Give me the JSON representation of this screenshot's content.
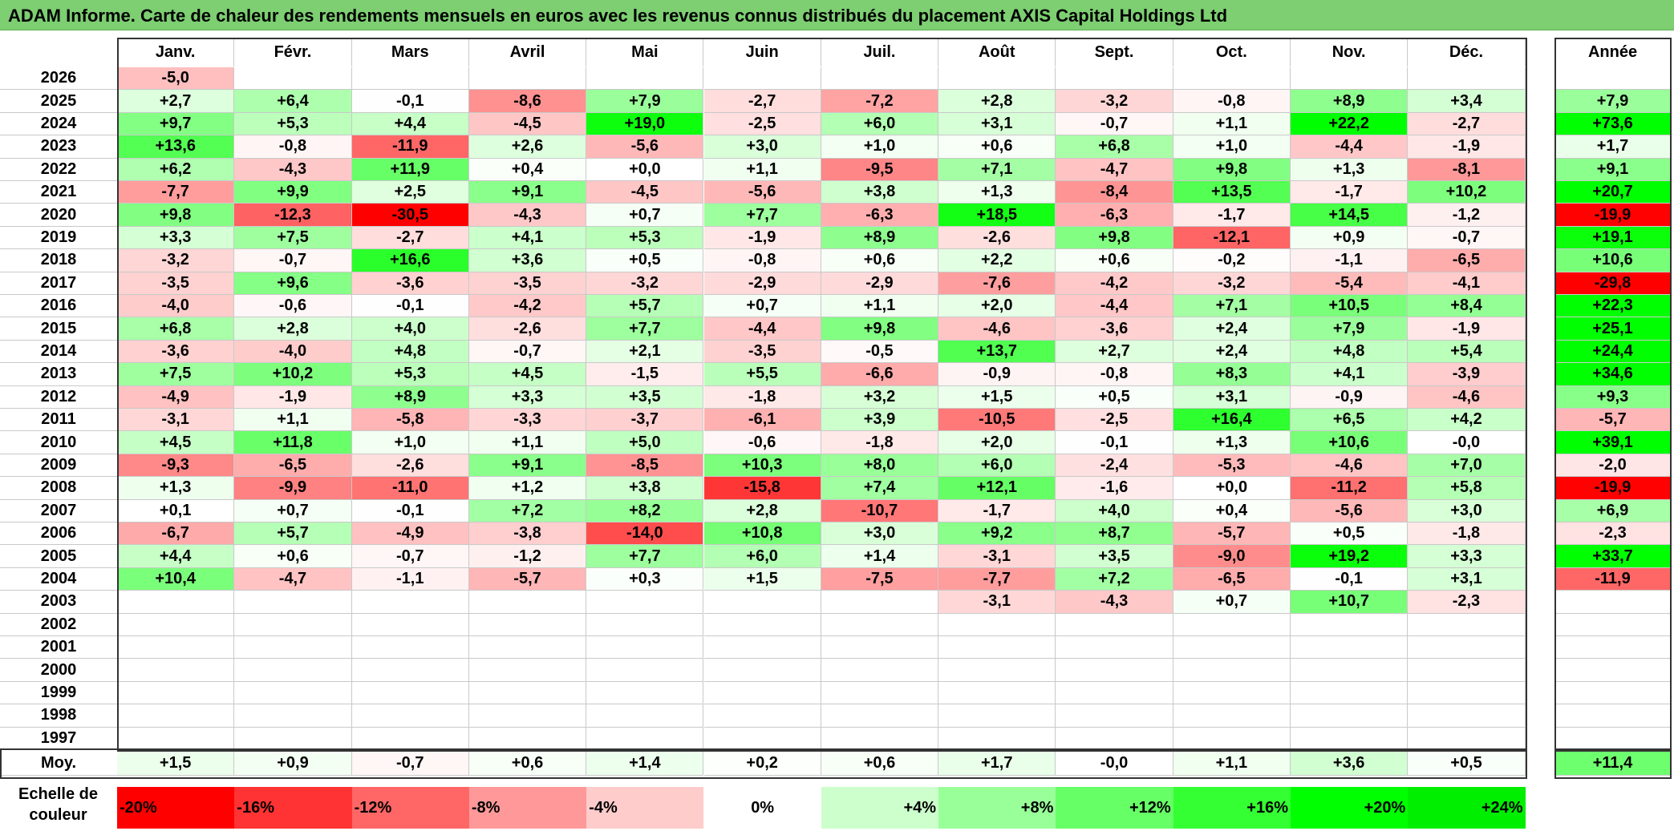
{
  "title": "ADAM Informe. Carte de chaleur des rendements mensuels en euros avec les revenus connus distribués du placement AXIS Capital Holdings Ltd",
  "chart_data": {
    "type": "heatmap",
    "months": [
      "Janv.",
      "Févr.",
      "Mars",
      "Avril",
      "Mai",
      "Juin",
      "Juil.",
      "Août",
      "Sept.",
      "Oct.",
      "Nov.",
      "Déc."
    ],
    "year_header": "Année",
    "avg_label": "Moy.",
    "rows": [
      {
        "year": "2026",
        "values": [
          "-5,0",
          null,
          null,
          null,
          null,
          null,
          null,
          null,
          null,
          null,
          null,
          null
        ],
        "annual": null
      },
      {
        "year": "2025",
        "values": [
          "+2,7",
          "+6,4",
          "-0,1",
          "-8,6",
          "+7,9",
          "-2,7",
          "-7,2",
          "+2,8",
          "-3,2",
          "-0,8",
          "+8,9",
          "+3,4"
        ],
        "annual": "+7,9"
      },
      {
        "year": "2024",
        "values": [
          "+9,7",
          "+5,3",
          "+4,4",
          "-4,5",
          "+19,0",
          "-2,5",
          "+6,0",
          "+3,1",
          "-0,7",
          "+1,1",
          "+22,2",
          "-2,7"
        ],
        "annual": "+73,6"
      },
      {
        "year": "2023",
        "values": [
          "+13,6",
          "-0,8",
          "-11,9",
          "+2,6",
          "-5,6",
          "+3,0",
          "+1,0",
          "+0,6",
          "+6,8",
          "+1,0",
          "-4,4",
          "-1,9"
        ],
        "annual": "+1,7"
      },
      {
        "year": "2022",
        "values": [
          "+6,2",
          "-4,3",
          "+11,9",
          "+0,4",
          "+0,0",
          "+1,1",
          "-9,5",
          "+7,1",
          "-4,7",
          "+9,8",
          "+1,3",
          "-8,1"
        ],
        "annual": "+9,1"
      },
      {
        "year": "2021",
        "values": [
          "-7,7",
          "+9,9",
          "+2,5",
          "+9,1",
          "-4,5",
          "-5,6",
          "+3,8",
          "+1,3",
          "-8,4",
          "+13,5",
          "-1,7",
          "+10,2"
        ],
        "annual": "+20,7"
      },
      {
        "year": "2020",
        "values": [
          "+9,8",
          "-12,3",
          "-30,5",
          "-4,3",
          "+0,7",
          "+7,7",
          "-6,3",
          "+18,5",
          "-6,3",
          "-1,7",
          "+14,5",
          "-1,2"
        ],
        "annual": "-19,9"
      },
      {
        "year": "2019",
        "values": [
          "+3,3",
          "+7,5",
          "-2,7",
          "+4,1",
          "+5,3",
          "-1,9",
          "+8,9",
          "-2,6",
          "+9,8",
          "-12,1",
          "+0,9",
          "-0,7"
        ],
        "annual": "+19,1"
      },
      {
        "year": "2018",
        "values": [
          "-3,2",
          "-0,7",
          "+16,6",
          "+3,6",
          "+0,5",
          "-0,8",
          "+0,6",
          "+2,2",
          "+0,6",
          "-0,2",
          "-1,1",
          "-6,5"
        ],
        "annual": "+10,6"
      },
      {
        "year": "2017",
        "values": [
          "-3,5",
          "+9,6",
          "-3,6",
          "-3,5",
          "-3,2",
          "-2,9",
          "-2,9",
          "-7,6",
          "-4,2",
          "-3,2",
          "-5,4",
          "-4,1"
        ],
        "annual": "-29,8"
      },
      {
        "year": "2016",
        "values": [
          "-4,0",
          "-0,6",
          "-0,1",
          "-4,2",
          "+5,7",
          "+0,7",
          "+1,1",
          "+2,0",
          "-4,4",
          "+7,1",
          "+10,5",
          "+8,4"
        ],
        "annual": "+22,3"
      },
      {
        "year": "2015",
        "values": [
          "+6,8",
          "+2,8",
          "+4,0",
          "-2,6",
          "+7,7",
          "-4,4",
          "+9,8",
          "-4,6",
          "-3,6",
          "+2,4",
          "+7,9",
          "-1,9"
        ],
        "annual": "+25,1"
      },
      {
        "year": "2014",
        "values": [
          "-3,6",
          "-4,0",
          "+4,8",
          "-0,7",
          "+2,1",
          "-3,5",
          "-0,5",
          "+13,7",
          "+2,7",
          "+2,4",
          "+4,8",
          "+5,4"
        ],
        "annual": "+24,4"
      },
      {
        "year": "2013",
        "values": [
          "+7,5",
          "+10,2",
          "+5,3",
          "+4,5",
          "-1,5",
          "+5,5",
          "-6,6",
          "-0,9",
          "-0,8",
          "+8,3",
          "+4,1",
          "-3,9"
        ],
        "annual": "+34,6"
      },
      {
        "year": "2012",
        "values": [
          "-4,9",
          "-1,9",
          "+8,9",
          "+3,3",
          "+3,5",
          "-1,8",
          "+3,2",
          "+1,5",
          "+0,5",
          "+3,1",
          "-0,9",
          "-4,6"
        ],
        "annual": "+9,3"
      },
      {
        "year": "2011",
        "values": [
          "-3,1",
          "+1,1",
          "-5,8",
          "-3,3",
          "-3,7",
          "-6,1",
          "+3,9",
          "-10,5",
          "-2,5",
          "+16,4",
          "+6,5",
          "+4,2"
        ],
        "annual": "-5,7"
      },
      {
        "year": "2010",
        "values": [
          "+4,5",
          "+11,8",
          "+1,0",
          "+1,1",
          "+5,0",
          "-0,6",
          "-1,8",
          "+2,0",
          "-0,1",
          "+1,3",
          "+10,6",
          "-0,0"
        ],
        "annual": "+39,1"
      },
      {
        "year": "2009",
        "values": [
          "-9,3",
          "-6,5",
          "-2,6",
          "+9,1",
          "-8,5",
          "+10,3",
          "+8,0",
          "+6,0",
          "-2,4",
          "-5,3",
          "-4,6",
          "+7,0"
        ],
        "annual": "-2,0"
      },
      {
        "year": "2008",
        "values": [
          "+1,3",
          "-9,9",
          "-11,0",
          "+1,2",
          "+3,8",
          "-15,8",
          "+7,4",
          "+12,1",
          "-1,6",
          "+0,0",
          "-11,2",
          "+5,8"
        ],
        "annual": "-19,9"
      },
      {
        "year": "2007",
        "values": [
          "+0,1",
          "+0,7",
          "-0,1",
          "+7,2",
          "+8,2",
          "+2,8",
          "-10,7",
          "-1,7",
          "+4,0",
          "+0,4",
          "-5,6",
          "+3,0"
        ],
        "annual": "+6,9"
      },
      {
        "year": "2006",
        "values": [
          "-6,7",
          "+5,7",
          "-4,9",
          "-3,8",
          "-14,0",
          "+10,8",
          "+3,0",
          "+9,2",
          "+8,7",
          "-5,7",
          "+0,5",
          "-1,8"
        ],
        "annual": "-2,3"
      },
      {
        "year": "2005",
        "values": [
          "+4,4",
          "+0,6",
          "-0,7",
          "-1,2",
          "+7,7",
          "+6,0",
          "+1,4",
          "-3,1",
          "+3,5",
          "-9,0",
          "+19,2",
          "+3,3"
        ],
        "annual": "+33,7"
      },
      {
        "year": "2004",
        "values": [
          "+10,4",
          "-4,7",
          "-1,1",
          "-5,7",
          "+0,3",
          "+1,5",
          "-7,5",
          "-7,7",
          "+7,2",
          "-6,5",
          "-0,1",
          "+3,1"
        ],
        "annual": "-11,9"
      },
      {
        "year": "2003",
        "values": [
          null,
          null,
          null,
          null,
          null,
          null,
          null,
          "-3,1",
          "-4,3",
          "+0,7",
          "+10,7",
          "-2,3"
        ],
        "annual": null
      },
      {
        "year": "2002",
        "values": [
          null,
          null,
          null,
          null,
          null,
          null,
          null,
          null,
          null,
          null,
          null,
          null
        ],
        "annual": null
      },
      {
        "year": "2001",
        "values": [
          null,
          null,
          null,
          null,
          null,
          null,
          null,
          null,
          null,
          null,
          null,
          null
        ],
        "annual": null
      },
      {
        "year": "2000",
        "values": [
          null,
          null,
          null,
          null,
          null,
          null,
          null,
          null,
          null,
          null,
          null,
          null
        ],
        "annual": null
      },
      {
        "year": "1999",
        "values": [
          null,
          null,
          null,
          null,
          null,
          null,
          null,
          null,
          null,
          null,
          null,
          null
        ],
        "annual": null
      },
      {
        "year": "1998",
        "values": [
          null,
          null,
          null,
          null,
          null,
          null,
          null,
          null,
          null,
          null,
          null,
          null
        ],
        "annual": null
      },
      {
        "year": "1997",
        "values": [
          null,
          null,
          null,
          null,
          null,
          null,
          null,
          null,
          null,
          null,
          null,
          null
        ],
        "annual": null
      }
    ],
    "averages": [
      "+1,5",
      "+0,9",
      "-0,7",
      "+0,6",
      "+1,4",
      "+0,2",
      "+0,6",
      "+1,7",
      "-0,0",
      "+1,1",
      "+3,6",
      "+0,5"
    ],
    "annual_average": "+11,4",
    "scale_label": "Echelle de couleur",
    "scale": [
      {
        "label": "-20%",
        "value": -20,
        "color": "#ff0000"
      },
      {
        "label": "-16%",
        "value": -16,
        "color": "#ff3333"
      },
      {
        "label": "-12%",
        "value": -12,
        "color": "#ff6666"
      },
      {
        "label": "-8%",
        "value": -8,
        "color": "#ff9999"
      },
      {
        "label": "-4%",
        "value": -4,
        "color": "#ffcccc"
      },
      {
        "label": "0%",
        "value": 0,
        "color": "#ffffff"
      },
      {
        "label": "+4%",
        "value": 4,
        "color": "#ccffcc"
      },
      {
        "label": "+8%",
        "value": 8,
        "color": "#99ff99"
      },
      {
        "label": "+12%",
        "value": 12,
        "color": "#66ff66"
      },
      {
        "label": "+16%",
        "value": 16,
        "color": "#33ff33"
      },
      {
        "label": "+20%",
        "value": 20,
        "color": "#00ff00"
      },
      {
        "label": "+24%",
        "value": 24,
        "color": "#00ee00"
      }
    ]
  }
}
